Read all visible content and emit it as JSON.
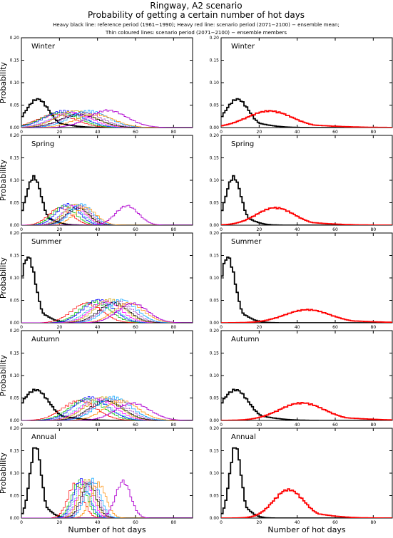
{
  "header": {
    "title": "Ringway, A2 scenario",
    "subtitle": "Probability of getting a certain number of hot days",
    "legend_line1": "Heavy black line: reference period (1961−1990); Heavy red line: scenario period (2071−2100) − ensemble mean;",
    "legend_line2": "Thin coloured lines: scenario period (2071−2100) − ensemble members"
  },
  "axes": {
    "ylabel": "Probability",
    "xlabel": "Number of hot days",
    "x_ticks": [
      "0",
      "20",
      "40",
      "60",
      "80"
    ],
    "y_ticks": [
      "0.00",
      "0.05",
      "0.10",
      "0.15",
      "0.20"
    ]
  },
  "colors": {
    "reference": "#000000",
    "ensemble_mean": "#ff0000",
    "members": [
      "#ff0000",
      "#00c000",
      "#0000ff",
      "#00c8c8",
      "#ff00ff",
      "#c8a000",
      "#000000",
      "#7b00b0",
      "#00a0ff",
      "#ff8c00",
      "#008000"
    ]
  },
  "chart_data": [
    {
      "type": "line",
      "title": "Winter",
      "column": "left",
      "xlim": [
        0,
        90
      ],
      "ylim": [
        0,
        0.2
      ],
      "ylabel": "Probability",
      "series": [
        {
          "role": "reference",
          "peak_x": 8,
          "peak_y": 0.065,
          "spread": 6
        },
        {
          "role": "members",
          "centers": [
            18,
            20,
            22,
            24,
            26,
            28,
            30,
            32,
            35,
            38
          ],
          "peak_y": 0.035,
          "spread": 10,
          "outlier_center": 45,
          "outlier_peak": 0.04
        }
      ]
    },
    {
      "type": "line",
      "title": "Winter",
      "column": "right",
      "xlim": [
        0,
        90
      ],
      "ylim": [
        0,
        0.2
      ],
      "series": [
        {
          "role": "reference",
          "peak_x": 8,
          "peak_y": 0.065,
          "spread": 6
        },
        {
          "role": "ensemble_mean",
          "peak_x": 25,
          "peak_y": 0.038,
          "spread": 12
        }
      ]
    },
    {
      "type": "line",
      "title": "Spring",
      "column": "left",
      "xlim": [
        0,
        90
      ],
      "ylim": [
        0,
        0.2
      ],
      "ylabel": "Probability",
      "series": [
        {
          "role": "reference",
          "peak_x": 6,
          "peak_y": 0.11,
          "spread": 4
        },
        {
          "role": "members",
          "centers": [
            20,
            22,
            24,
            26,
            27,
            28,
            29,
            30,
            31,
            33
          ],
          "peak_y": 0.045,
          "spread": 6,
          "outlier_center": 55,
          "outlier_peak": 0.045
        }
      ]
    },
    {
      "type": "line",
      "title": "Spring",
      "column": "right",
      "xlim": [
        0,
        90
      ],
      "ylim": [
        0,
        0.2
      ],
      "series": [
        {
          "role": "reference",
          "peak_x": 6,
          "peak_y": 0.11,
          "spread": 4
        },
        {
          "role": "ensemble_mean",
          "peak_x": 28,
          "peak_y": 0.04,
          "spread": 10
        }
      ]
    },
    {
      "type": "line",
      "title": "Summer",
      "column": "left",
      "xlim": [
        0,
        90
      ],
      "ylim": [
        0,
        0.2
      ],
      "ylabel": "Probability",
      "series": [
        {
          "role": "reference",
          "peak_x": 3,
          "peak_y": 0.15,
          "spread": 4
        },
        {
          "role": "members",
          "centers": [
            34,
            38,
            40,
            42,
            44,
            46,
            48,
            50,
            52,
            56
          ],
          "peak_y": 0.05,
          "spread": 8,
          "outlier_center": 58,
          "outlier_peak": 0.045
        }
      ]
    },
    {
      "type": "line",
      "title": "Summer",
      "column": "right",
      "xlim": [
        0,
        90
      ],
      "ylim": [
        0,
        0.2
      ],
      "series": [
        {
          "role": "reference",
          "peak_x": 3,
          "peak_y": 0.15,
          "spread": 4
        },
        {
          "role": "ensemble_mean",
          "peak_x": 45,
          "peak_y": 0.03,
          "spread": 12
        }
      ]
    },
    {
      "type": "line",
      "title": "Autumn",
      "column": "left",
      "xlim": [
        0,
        90
      ],
      "ylim": [
        0,
        0.2
      ],
      "ylabel": "Probability",
      "series": [
        {
          "role": "reference",
          "peak_x": 7,
          "peak_y": 0.07,
          "spread": 7
        },
        {
          "role": "members",
          "centers": [
            30,
            34,
            36,
            38,
            40,
            42,
            44,
            46,
            48,
            52
          ],
          "peak_y": 0.05,
          "spread": 9,
          "outlier_center": 58,
          "outlier_peak": 0.04
        }
      ]
    },
    {
      "type": "line",
      "title": "Autumn",
      "column": "right",
      "xlim": [
        0,
        90
      ],
      "ylim": [
        0,
        0.2
      ],
      "series": [
        {
          "role": "reference",
          "peak_x": 7,
          "peak_y": 0.07,
          "spread": 7
        },
        {
          "role": "ensemble_mean",
          "peak_x": 42,
          "peak_y": 0.04,
          "spread": 12
        }
      ]
    },
    {
      "type": "line",
      "title": "Annual",
      "column": "left",
      "xlim": [
        0,
        90
      ],
      "ylim": [
        0,
        0.2
      ],
      "ylabel": "Probability",
      "xlabel": "Number of hot days",
      "series": [
        {
          "role": "reference",
          "peak_x": 7,
          "peak_y": 0.165,
          "spread": 3
        },
        {
          "role": "members",
          "centers": [
            28,
            30,
            31,
            32,
            33,
            34,
            35,
            36,
            37,
            40
          ],
          "peak_y": 0.085,
          "spread": 4,
          "outlier_center": 53,
          "outlier_peak": 0.085
        }
      ]
    },
    {
      "type": "line",
      "title": "Annual",
      "column": "right",
      "xlim": [
        0,
        90
      ],
      "ylim": [
        0,
        0.2
      ],
      "xlabel": "Number of hot days",
      "series": [
        {
          "role": "reference",
          "peak_x": 7,
          "peak_y": 0.165,
          "spread": 3
        },
        {
          "role": "ensemble_mean",
          "peak_x": 35,
          "peak_y": 0.065,
          "spread": 8
        }
      ]
    }
  ]
}
